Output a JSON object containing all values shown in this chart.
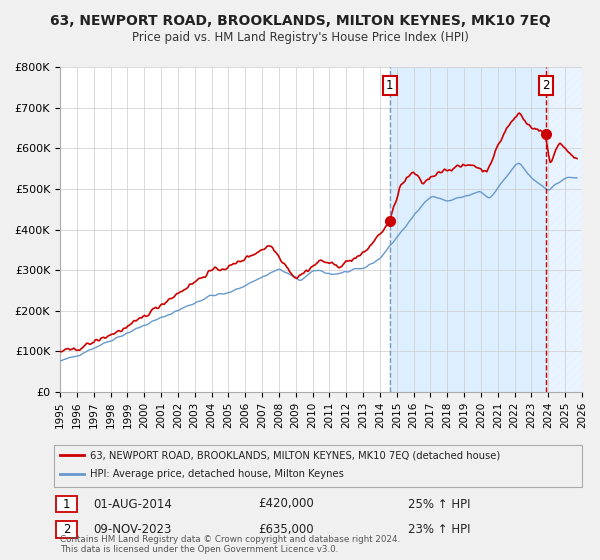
{
  "title": "63, NEWPORT ROAD, BROOKLANDS, MILTON KEYNES, MK10 7EQ",
  "subtitle": "Price paid vs. HM Land Registry's House Price Index (HPI)",
  "ylim": [
    0,
    800000
  ],
  "xlim_start": 1995.0,
  "xlim_end": 2026.0,
  "yticks": [
    0,
    100000,
    200000,
    300000,
    400000,
    500000,
    600000,
    700000,
    800000
  ],
  "ytick_labels": [
    "£0",
    "£100K",
    "£200K",
    "£300K",
    "£400K",
    "£500K",
    "£600K",
    "£700K",
    "£800K"
  ],
  "xticks": [
    1995,
    1996,
    1997,
    1998,
    1999,
    2000,
    2001,
    2002,
    2003,
    2004,
    2005,
    2006,
    2007,
    2008,
    2009,
    2010,
    2011,
    2012,
    2013,
    2014,
    2015,
    2016,
    2017,
    2018,
    2019,
    2020,
    2021,
    2022,
    2023,
    2024,
    2025,
    2026
  ],
  "sale1_date": 2014.583,
  "sale1_price": 420000,
  "sale1_text": "01-AUG-2014",
  "sale1_price_text": "£420,000",
  "sale1_hpi_text": "25% ↑ HPI",
  "sale2_date": 2023.836,
  "sale2_price": 635000,
  "sale2_text": "09-NOV-2023",
  "sale2_price_text": "£635,000",
  "sale2_hpi_text": "23% ↑ HPI",
  "red_line_color": "#cc0000",
  "blue_line_color": "#6699cc",
  "bg_shaded_color": "#ddeeff",
  "vline1_color": "#7799bb",
  "vline2_color": "#cc0000",
  "legend_line1": "63, NEWPORT ROAD, BROOKLANDS, MILTON KEYNES, MK10 7EQ (detached house)",
  "legend_line2": "HPI: Average price, detached house, Milton Keynes",
  "footer1": "Contains HM Land Registry data © Crown copyright and database right 2024.",
  "footer2": "This data is licensed under the Open Government Licence v3.0.",
  "bg_color": "#f0f0f0",
  "plot_bg_color": "#ffffff"
}
